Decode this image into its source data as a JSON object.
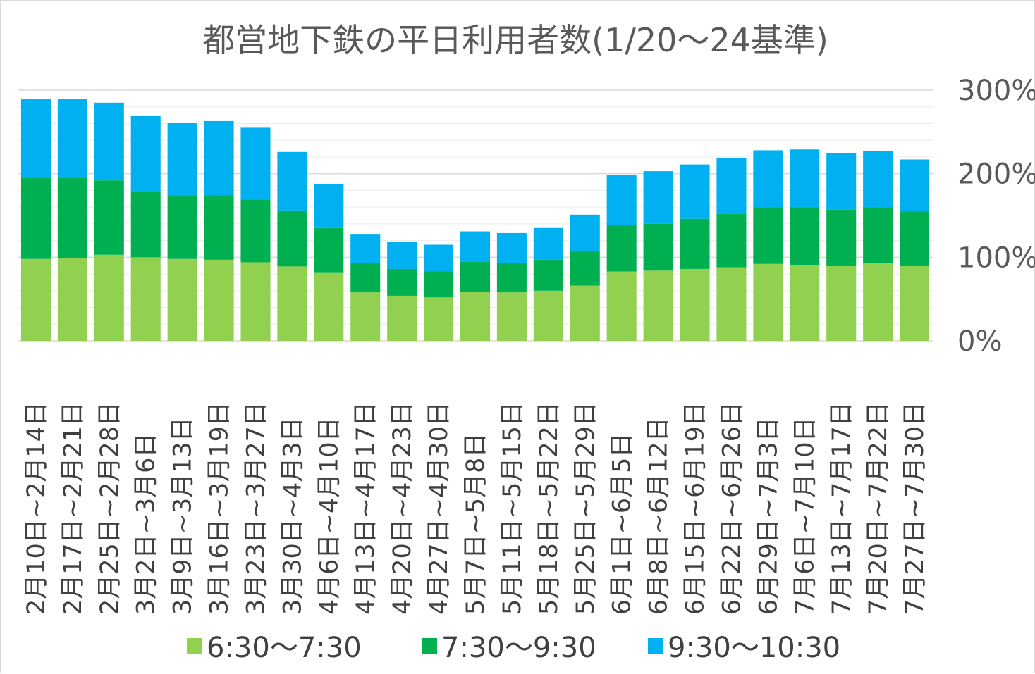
{
  "chart_data": {
    "type": "bar",
    "stacked": true,
    "title": "都営地下鉄の平日利用者数(1/20～24基準)",
    "categories": [
      "2月10日~2月14日",
      "2月17日~2月21日",
      "2月25日~2月28日",
      "3月2日~3月6日",
      "3月9日~3月13日",
      "3月16日~3月19日",
      "3月23日~3月27日",
      "3月30日~4月3日",
      "4月6日~4月10日",
      "4月13日~4月17日",
      "4月20日~4月23日",
      "4月27日~4月30日",
      "5月7日~5月8日",
      "5月11日~5月15日",
      "5月18日~5月22日",
      "5月25日~5月29日",
      "6月1日~6月5日",
      "6月8日~6月12日",
      "6月15日~6月19日",
      "6月22日~6月26日",
      "6月29日~7月3日",
      "7月6日~7月10日",
      "7月13日~7月17日",
      "7月20日~7月22日",
      "7月27日~7月30日"
    ],
    "series": [
      {
        "name": "6:30～7:30",
        "color": "#92d050",
        "values": [
          98,
          99,
          103,
          100,
          98,
          97,
          94,
          89,
          82,
          58,
          54,
          52,
          59,
          58,
          60,
          66,
          83,
          84,
          86,
          88,
          92,
          91,
          90,
          93,
          90
        ]
      },
      {
        "name": "7:30～9:30",
        "color": "#00b050",
        "values": [
          97,
          96,
          89,
          78,
          75,
          77,
          75,
          67,
          53,
          35,
          32,
          31,
          36,
          35,
          37,
          41,
          56,
          56,
          60,
          64,
          68,
          69,
          67,
          67,
          65
        ]
      },
      {
        "name": "9:30～10:30",
        "color": "#00b0f0",
        "values": [
          94,
          94,
          93,
          91,
          88,
          89,
          86,
          70,
          53,
          35,
          32,
          32,
          36,
          36,
          38,
          44,
          59,
          63,
          65,
          67,
          68,
          69,
          68,
          67,
          62
        ]
      }
    ],
    "yticks": [
      "0%",
      "100%",
      "200%",
      "300%"
    ],
    "ylim": [
      0,
      300
    ],
    "y_axis_side": "right",
    "grid": true,
    "legend_position": "bottom"
  }
}
